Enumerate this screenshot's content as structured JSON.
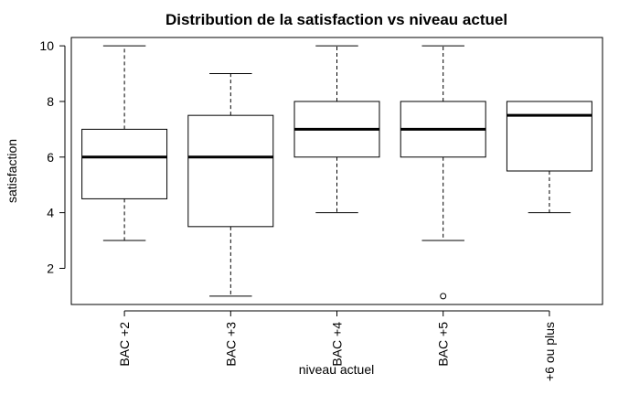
{
  "chart_data": {
    "type": "box",
    "title": "Distribution de la satisfaction vs niveau actuel",
    "xlabel": "niveau actuel",
    "ylabel": "satisfaction",
    "ylim": [
      0.7,
      10.3
    ],
    "yticks": [
      2,
      4,
      6,
      8,
      10
    ],
    "grid": false,
    "categories": [
      "BAC +2",
      "BAC +3",
      "BAC +4",
      "BAC +5",
      "+6 ou plus"
    ],
    "boxes": [
      {
        "category": "BAC +2",
        "whisker_low": 3,
        "q1": 4.5,
        "median": 6,
        "q3": 7,
        "whisker_high": 10,
        "outliers": []
      },
      {
        "category": "BAC +3",
        "whisker_low": 1,
        "q1": 3.5,
        "median": 6,
        "q3": 7.5,
        "whisker_high": 9,
        "outliers": []
      },
      {
        "category": "BAC +4",
        "whisker_low": 4,
        "q1": 6,
        "median": 7,
        "q3": 8,
        "whisker_high": 10,
        "outliers": []
      },
      {
        "category": "BAC +5",
        "whisker_low": 3,
        "q1": 6,
        "median": 7,
        "q3": 8,
        "whisker_high": 10,
        "outliers": [
          1
        ]
      },
      {
        "category": "+6 ou plus",
        "whisker_low": 4,
        "q1": 5.5,
        "median": 7.5,
        "q3": 8,
        "whisker_high": 8,
        "outliers": []
      }
    ],
    "colors": {
      "box_fill": "#ffffff",
      "stroke": "#000000"
    }
  }
}
